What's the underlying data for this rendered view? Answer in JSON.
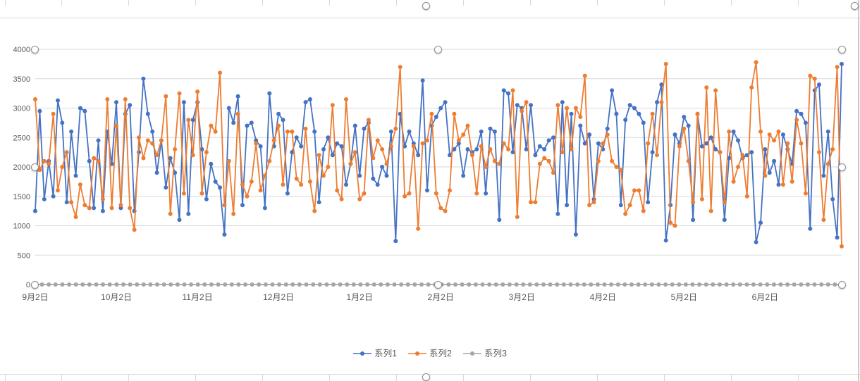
{
  "chart_data": {
    "type": "line",
    "title": "",
    "xlabel": "",
    "ylabel": "",
    "ylim": [
      0,
      4000
    ],
    "ytick_step": 500,
    "y_tick_labels": [
      "0",
      "500",
      "1000",
      "1500",
      "2000",
      "2500",
      "3000",
      "3500",
      "4000"
    ],
    "x_tick_labels": [
      "9月2日",
      "10月2日",
      "11月2日",
      "12月2日",
      "1月2日",
      "2月2日",
      "3月2日",
      "4月2日",
      "5月2日",
      "6月2日"
    ],
    "x_tick_indices": [
      0,
      18,
      36,
      54,
      72,
      90,
      108,
      126,
      144,
      162
    ],
    "grid": true,
    "legend_position": "bottom",
    "axis_text_color": "#595959",
    "gridline_color": "#d9d9d9",
    "series": [
      {
        "name": "系列1",
        "color": "#4472C4",
        "marker": "circle",
        "values": [
          1250,
          2950,
          1450,
          2100,
          1500,
          3130,
          2750,
          1400,
          2600,
          1850,
          3000,
          2950,
          2100,
          1300,
          2450,
          1250,
          2600,
          2050,
          3100,
          1300,
          2900,
          3050,
          1250,
          2250,
          3500,
          2900,
          2600,
          1900,
          2450,
          1650,
          2150,
          1900,
          1100,
          3100,
          1200,
          2800,
          3100,
          2300,
          1450,
          2050,
          1750,
          1650,
          850,
          3000,
          2750,
          3200,
          1350,
          2700,
          2750,
          2450,
          2350,
          1300,
          3250,
          2350,
          2900,
          2800,
          1550,
          2250,
          2500,
          2350,
          3100,
          3150,
          2600,
          1400,
          2300,
          2500,
          2200,
          2400,
          2350,
          1700,
          2050,
          2700,
          1850,
          2650,
          2750,
          1800,
          1700,
          2000,
          1850,
          2600,
          740,
          2900,
          2350,
          2600,
          2400,
          2200,
          3470,
          1600,
          2700,
          2850,
          3000,
          3100,
          2200,
          2300,
          2400,
          1850,
          2300,
          2250,
          2300,
          2600,
          1550,
          2650,
          2600,
          1100,
          3300,
          3250,
          2250,
          3050,
          3000,
          2300,
          3050,
          2200,
          2350,
          2300,
          2450,
          2500,
          1200,
          3100,
          1350,
          2900,
          850,
          2700,
          2400,
          2550,
          1450,
          2400,
          2300,
          2650,
          3300,
          2900,
          1350,
          2800,
          3050,
          3000,
          2900,
          2750,
          1400,
          2250,
          3100,
          3400,
          750,
          1350,
          2550,
          2400,
          2850,
          2700,
          1100,
          2900,
          2350,
          2400,
          2500,
          2300,
          2250,
          1100,
          2150,
          2600,
          2450,
          2150,
          2200,
          2250,
          720,
          1050,
          2300,
          1900,
          2100,
          1700,
          2550,
          2300,
          2050,
          2950,
          2900,
          2750,
          950,
          3300,
          3400,
          1850,
          2600,
          1450,
          800,
          3750
        ]
      },
      {
        "name": "系列2",
        "color": "#ED7D31",
        "marker": "circle",
        "values": [
          3150,
          1950,
          2100,
          2050,
          2900,
          1600,
          2000,
          2250,
          1400,
          1150,
          1700,
          1350,
          1300,
          2150,
          2100,
          1450,
          3150,
          1300,
          2700,
          1350,
          3150,
          1300,
          930,
          2500,
          2150,
          2450,
          2400,
          2200,
          2450,
          3200,
          1200,
          2300,
          3250,
          1550,
          2800,
          2200,
          3280,
          1550,
          2250,
          2700,
          2600,
          3600,
          1350,
          2100,
          1200,
          2900,
          1700,
          1500,
          1750,
          2400,
          1600,
          1850,
          2100,
          2450,
          2700,
          1700,
          2600,
          2600,
          1800,
          1700,
          2650,
          1750,
          1250,
          2200,
          1850,
          2000,
          3050,
          1600,
          1450,
          3150,
          2050,
          2250,
          1450,
          1550,
          2800,
          2150,
          2450,
          2300,
          2050,
          2350,
          2650,
          3700,
          1500,
          1550,
          2350,
          950,
          2400,
          2450,
          2900,
          1550,
          1300,
          1250,
          1600,
          2900,
          2450,
          2550,
          2700,
          2200,
          1550,
          2350,
          2000,
          2300,
          2100,
          2050,
          2400,
          2300,
          3300,
          1150,
          2950,
          3100,
          1400,
          1400,
          2050,
          2150,
          2100,
          1900,
          3050,
          2250,
          3000,
          2300,
          3000,
          2850,
          3550,
          1350,
          1400,
          2100,
          2400,
          2550,
          2100,
          2000,
          1950,
          1200,
          1350,
          1600,
          1600,
          1250,
          2400,
          2900,
          2200,
          3100,
          3750,
          1050,
          1000,
          2350,
          2650,
          2100,
          1400,
          2900,
          1450,
          3350,
          1250,
          3300,
          2250,
          1400,
          2600,
          1750,
          2000,
          2200,
          1500,
          3350,
          3780,
          2600,
          1850,
          2550,
          2450,
          2600,
          1700,
          2400,
          1750,
          2800,
          2400,
          1550,
          3550,
          3500,
          2250,
          1100,
          2050,
          2300,
          3700,
          650
        ]
      },
      {
        "name": "系列3",
        "color": "#A5A5A5",
        "marker": "circle",
        "constant": 0,
        "count": 120
      }
    ]
  }
}
